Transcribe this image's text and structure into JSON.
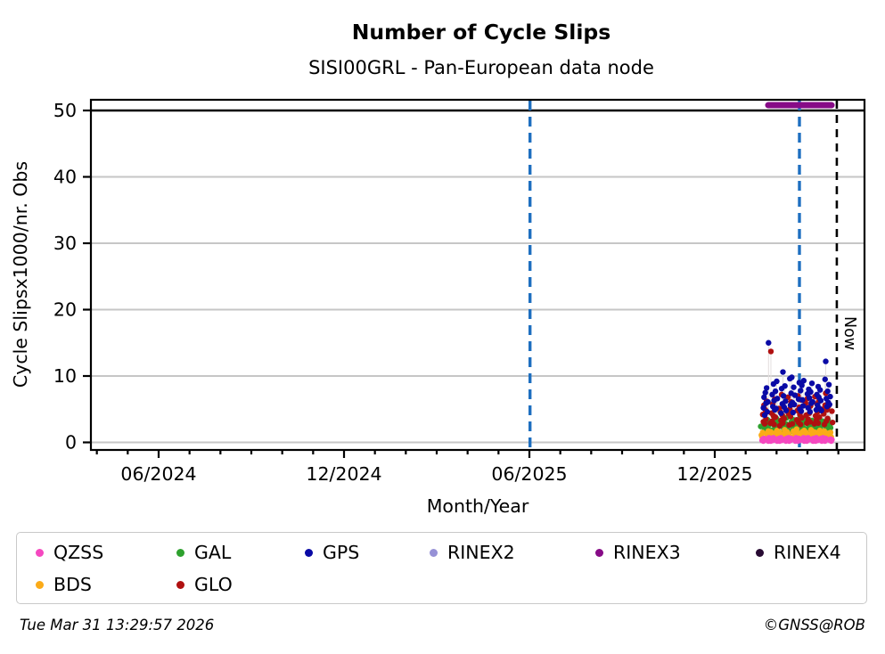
{
  "header": {
    "title": "Number of Cycle Slips",
    "subtitle": "SISI00GRL - Pan-European data node"
  },
  "footer": {
    "timestamp": "Tue Mar 31 13:29:57 2026",
    "credit": "©GNSS@ROB"
  },
  "chart_data": {
    "type": "scatter",
    "title": "Number of Cycle Slips",
    "subtitle": "SISI00GRL - Pan-European data node",
    "xlabel": "Month/Year",
    "ylabel": "Cycle Slipsx1000/nr. Obs",
    "ylim": [
      -1.15,
      51.6
    ],
    "grid": true,
    "y_ticks": [
      0,
      10,
      20,
      30,
      40,
      50
    ],
    "grid_y_values": [
      0,
      10,
      20,
      30,
      40
    ],
    "threshold_line": {
      "y": 50,
      "color": "#000000"
    },
    "x_ticks": [
      {
        "label": "06/2024",
        "month_offset": 0
      },
      {
        "label": "12/2024",
        "month_offset": 6
      },
      {
        "label": "06/2025",
        "month_offset": 12
      },
      {
        "label": "12/2025",
        "month_offset": 18
      }
    ],
    "x_minor_ticks": {
      "from_month": -2,
      "to_month": 22
    },
    "event_lines": [
      {
        "name": "event-line-jun-2025",
        "month_offset": 12.02,
        "color": "#1e6fc0"
      },
      {
        "name": "event-line-feb-2026",
        "month_offset": 20.74,
        "color": "#1e6fc0"
      }
    ],
    "now_line": {
      "month_offset": 21.95,
      "color": "#000000",
      "label": "Now"
    },
    "rinex3_bar": {
      "y": 50.8,
      "month_start": 19.73,
      "month_end": 21.78,
      "color": "#870b87"
    },
    "scatter": {
      "month_start": 19.53,
      "month_end": 21.78,
      "series": [
        {
          "name": "GAL",
          "color": "#2ea12e",
          "values": [
            2.4,
            1.8,
            3.1,
            2.2,
            2.8,
            1.6,
            3.4,
            2.0,
            2.6,
            3.0,
            1.9,
            2.7,
            3.3,
            1.7,
            2.5,
            3.6,
            2.1,
            1.8,
            3.2,
            2.4,
            2.9,
            1.6,
            3.5,
            2.3,
            1.9,
            2.8,
            3.7,
            2.0,
            1.7,
            3.1,
            2.5,
            1.8,
            3.4,
            2.2,
            2.7,
            1.6,
            3.0,
            2.4,
            3.8,
            1.9,
            2.6,
            3.2,
            1.7,
            2.9,
            2.1,
            3.5,
            1.8,
            2.4,
            3.1,
            2.0,
            2.7,
            1.6,
            3.3,
            2.5,
            1.9,
            2.8,
            2.2,
            3.6,
            1.7,
            2.3,
            3.0,
            1.8,
            2.6,
            3.2,
            2.1,
            2.9,
            1.7,
            3.4,
            2.4,
            1.9,
            2.7,
            2.2
          ]
        },
        {
          "name": "BDS",
          "color": "#fbab18",
          "values": [
            1.1,
            0.8,
            1.5,
            0.7,
            1.3,
            1.0,
            1.7,
            0.6,
            1.2,
            0.9,
            1.6,
            0.8,
            1.4,
            1.1,
            0.7,
            1.8,
            1.0,
            1.3,
            0.8,
            1.5,
            0.9,
            1.2,
            1.9,
            0.7,
            1.4,
            1.0,
            1.6,
            0.8,
            1.3,
            1.1,
            0.7,
            1.7,
            0.9,
            1.5,
            1.2,
            0.8,
            2.0,
            1.0,
            1.4,
            0.7,
            1.6,
            1.1,
            0.9,
            1.8,
            0.8,
            1.3,
            1.5,
            0.7,
            1.2,
            1.9,
            1.0,
            1.4,
            0.8,
            1.6,
            1.1,
            0.7,
            1.5,
            0.9,
            1.8,
            1.2,
            0.8,
            1.6,
            1.0,
            1.3,
            0.7,
            1.7,
            1.1,
            1.4,
            0.9,
            1.2,
            1.5,
            0.8
          ]
        },
        {
          "name": "QZSS",
          "color": "#f548c0",
          "values": [
            0.3,
            0.5,
            0.2,
            0.6,
            0.4,
            0.2,
            0.7,
            0.3,
            0.5,
            0.2,
            0.6,
            0.4,
            0.3,
            0.7,
            0.2,
            0.5,
            0.3,
            0.6,
            0.2,
            0.4,
            0.7,
            0.3,
            0.5,
            0.2,
            0.6,
            0.3,
            0.4,
            0.7,
            0.2,
            0.5,
            0.3,
            0.6,
            0.4,
            0.2,
            0.7,
            0.3,
            0.5,
            0.2,
            0.6,
            0.4,
            0.3,
            0.7,
            0.2,
            0.5,
            0.4,
            0.6,
            0.2,
            0.3,
            0.7,
            0.4,
            0.5,
            0.2,
            0.6,
            0.3,
            0.4,
            0.2,
            0.7,
            0.5,
            0.3,
            0.6,
            0.2,
            0.4,
            0.7,
            0.3,
            0.5,
            0.2,
            0.6,
            0.4,
            0.3,
            0.5,
            0.2,
            0.4
          ]
        },
        {
          "name": "GLO",
          "color": "#b01010",
          "values": [
            4.2,
            3.1,
            5.6,
            2.8,
            4.9,
            3.5,
            6.2,
            2.9,
            13.7,
            4.4,
            3.2,
            5.8,
            4.0,
            2.7,
            6.5,
            3.8,
            5.1,
            2.5,
            4.6,
            3.3,
            7.2,
            4.1,
            2.9,
            5.4,
            3.6,
            6.8,
            4.3,
            2.6,
            5.0,
            3.9,
            6.1,
            4.5,
            2.8,
            5.7,
            3.4,
            4.8,
            7.0,
            3.0,
            5.3,
            4.2,
            2.7,
            6.4,
            3.7,
            5.9,
            4.1,
            2.9,
            6.6,
            3.5,
            5.2,
            4.4,
            3.1,
            5.5,
            2.8,
            6.9,
            4.0,
            3.3,
            5.8,
            4.6,
            2.9,
            6.2,
            3.8,
            5.0,
            4.3,
            2.7,
            5.6,
            7.4,
            3.2,
            4.9,
            3.6,
            5.4,
            4.7,
            3.0
          ]
        },
        {
          "name": "GPS",
          "color": "#0a0aa5",
          "values": [
            5.2,
            6.8,
            4.1,
            7.5,
            5.9,
            8.2,
            4.6,
            6.1,
            15.0,
            7.2,
            5.4,
            8.8,
            6.3,
            4.9,
            7.7,
            5.1,
            9.2,
            6.6,
            4.4,
            8.1,
            5.8,
            10.6,
            7.0,
            5.3,
            8.5,
            6.2,
            4.8,
            9.6,
            5.6,
            7.4,
            9.8,
            6.0,
            4.5,
            8.3,
            5.7,
            7.1,
            6.5,
            9.0,
            5.0,
            7.8,
            4.7,
            8.6,
            6.4,
            5.5,
            9.3,
            7.3,
            5.2,
            8.0,
            6.7,
            4.6,
            7.6,
            5.9,
            8.9,
            6.1,
            4.9,
            7.2,
            5.6,
            8.4,
            6.8,
            5.1,
            7.9,
            6.3,
            4.8,
            9.5,
            12.2,
            6.6,
            5.4,
            7.7,
            6.0,
            8.7,
            5.7,
            6.9
          ]
        }
      ]
    },
    "legend": {
      "position": "bottom",
      "entries": [
        {
          "label": "QZSS",
          "color": "#f548c0"
        },
        {
          "label": "GAL",
          "color": "#2ea12e"
        },
        {
          "label": "GPS",
          "color": "#0a0aa5"
        },
        {
          "label": "RINEX2",
          "color": "#9691d6"
        },
        {
          "label": "RINEX3",
          "color": "#870b87"
        },
        {
          "label": "RINEX4",
          "color": "#280b33"
        },
        {
          "label": "BDS",
          "color": "#fbab18"
        },
        {
          "label": "GLO",
          "color": "#b01010"
        }
      ]
    },
    "colors": {
      "grid": "#c6c6c6",
      "stem": "#e3dede",
      "frame": "#000000",
      "event_line_blue": "#1e6fc0"
    }
  }
}
